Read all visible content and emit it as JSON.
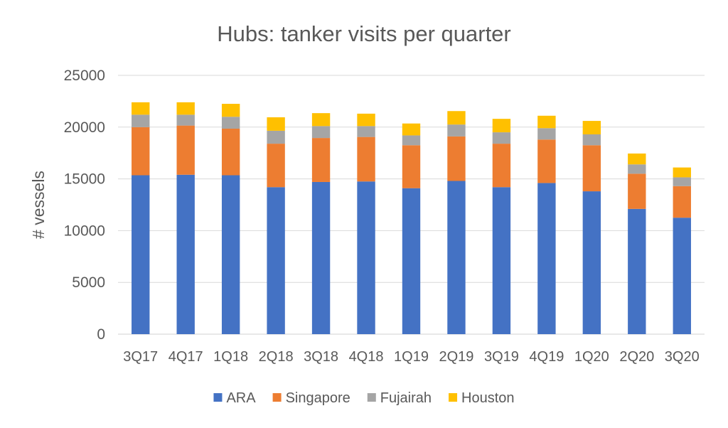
{
  "chart_data": {
    "type": "bar",
    "stacked": true,
    "title": "Hubs: tanker visits per quarter",
    "xlabel": "",
    "ylabel": "# vessels",
    "ylim": [
      0,
      25000
    ],
    "yticks": [
      0,
      5000,
      10000,
      15000,
      20000,
      25000
    ],
    "grid": true,
    "legend_position": "bottom",
    "categories": [
      "3Q17",
      "4Q17",
      "1Q18",
      "2Q18",
      "3Q18",
      "4Q18",
      "1Q19",
      "2Q19",
      "3Q19",
      "4Q19",
      "1Q20",
      "2Q20",
      "3Q20"
    ],
    "series": [
      {
        "name": "ARA",
        "color": "#4472C4",
        "values": [
          15350,
          15400,
          15350,
          14200,
          14700,
          14750,
          14100,
          14800,
          14200,
          14600,
          13800,
          12100,
          11250
        ]
      },
      {
        "name": "Singapore",
        "color": "#ED7D31",
        "values": [
          4650,
          4750,
          4500,
          4200,
          4250,
          4300,
          4150,
          4300,
          4200,
          4200,
          4450,
          3400,
          3050
        ]
      },
      {
        "name": "Fujairah",
        "color": "#A5A5A5",
        "values": [
          1200,
          1050,
          1150,
          1250,
          1150,
          1050,
          950,
          1150,
          1100,
          1100,
          1050,
          900,
          850
        ]
      },
      {
        "name": "Houston",
        "color": "#FFC000",
        "values": [
          1200,
          1200,
          1250,
          1300,
          1250,
          1200,
          1150,
          1300,
          1300,
          1200,
          1300,
          1050,
          950
        ]
      }
    ]
  }
}
